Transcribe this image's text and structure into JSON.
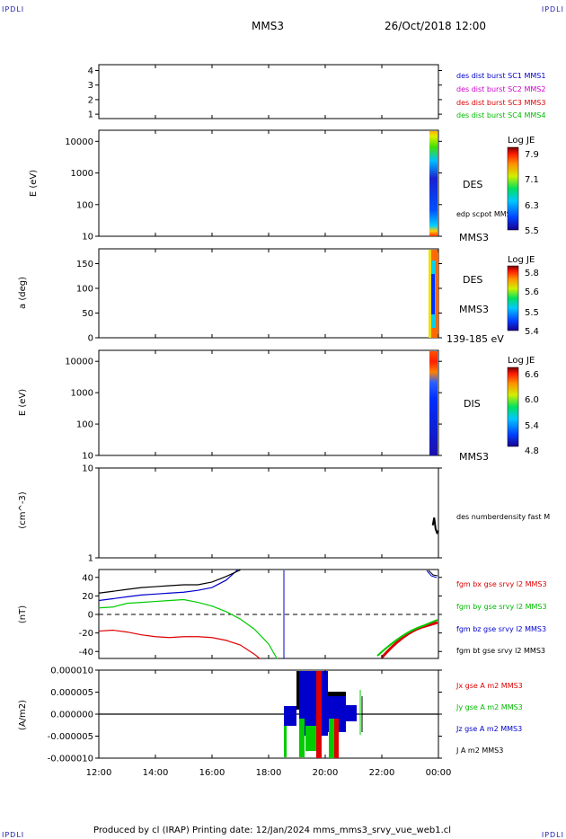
{
  "header": {
    "corner_label": "IPDLI",
    "spacecraft": "MMS3",
    "date_time": "26/Oct/2018 12:00"
  },
  "footer": {
    "text": "Produced by cl (IRAP)   Printing date: 12/Jan/2024   mms_mms3_srvy_vue_web1.cl"
  },
  "colors": {
    "c1": "#0000cc",
    "c2": "#cc00cc",
    "c3": "#dd0000",
    "c4": "#00bb00",
    "bx": "#dd0000",
    "by": "#00cc00",
    "bz": "#0000cc",
    "bt": "#000000"
  },
  "chart_data": [
    {
      "type": "line",
      "panel": "burst-intervals",
      "yticks": [
        "1",
        "2",
        "3",
        "4"
      ],
      "ylim": [
        0.7,
        4.4
      ],
      "legend": [
        "des dist burst SC1 MMS1",
        "des dist burst SC2 MMS2",
        "des dist burst SC3 MMS3",
        "des dist burst SC4 MMS4"
      ]
    },
    {
      "type": "heatmap",
      "panel": "des-energy-spectrogram",
      "ylabel": "E (eV)",
      "yscale": "log",
      "yticks": [
        "10",
        "100",
        "1000",
        "10000"
      ],
      "instrument": "DES",
      "spacecraft": "MMS3",
      "overlay_label": "edp scpot MMS3",
      "colorbar": {
        "title": "Log JE",
        "ticks": [
          "7.9",
          "7.1",
          "6.3",
          "5.5"
        ]
      }
    },
    {
      "type": "heatmap",
      "panel": "des-pitch-angle",
      "ylabel": "a (deg)",
      "yticks": [
        "0",
        "50",
        "100",
        "150"
      ],
      "ylim": [
        0,
        180
      ],
      "instrument": "DES",
      "spacecraft": "MMS3",
      "energy_range": "139-185 eV",
      "colorbar": {
        "title": "Log JE",
        "ticks": [
          "5.8",
          "5.6",
          "5.5",
          "5.4"
        ]
      }
    },
    {
      "type": "heatmap",
      "panel": "dis-energy-spectrogram",
      "ylabel": "E (eV)",
      "yscale": "log",
      "yticks": [
        "10",
        "100",
        "1000",
        "10000"
      ],
      "instrument": "DIS",
      "spacecraft": "MMS3",
      "colorbar": {
        "title": "Log JE",
        "ticks": [
          "6.6",
          "6.0",
          "5.4",
          "4.8"
        ]
      }
    },
    {
      "type": "line",
      "panel": "density",
      "ylabel": "(cm^-3)",
      "yscale": "log",
      "yticks": [
        "1",
        "10"
      ],
      "legend": [
        "des numberdensity fast M"
      ],
      "series": [
        {
          "x": [
            23.8,
            23.85,
            23.9,
            23.95,
            24.0
          ],
          "values": [
            2.3,
            2.8,
            2.1,
            1.9,
            2.0
          ]
        }
      ]
    },
    {
      "type": "line",
      "panel": "magnetic-field",
      "ylabel": "(nT)",
      "yticks": [
        "-40",
        "-20",
        "0",
        "20",
        "40"
      ],
      "ylim": [
        -48,
        48
      ],
      "legend": [
        "fgm bx gse srvy l2 MMS3",
        "fgm by gse srvy l2 MMS3",
        "fgm bz gse srvy l2 MMS3",
        "fgm bt gse srvy l2 MMS3"
      ],
      "series": [
        {
          "name": "fgm bx gse srvy l2 MMS3",
          "x": [
            12.0,
            12.5,
            13.0,
            13.5,
            14.0,
            14.5,
            15.0,
            15.5,
            16.0,
            16.5,
            17.0,
            17.5,
            17.7
          ],
          "values": [
            -18,
            -17,
            -19,
            -22,
            -24,
            -25,
            -24,
            -24,
            -25,
            -28,
            -33,
            -43,
            -48
          ]
        },
        {
          "name": "fgm by gse srvy l2 MMS3",
          "x": [
            12.0,
            12.5,
            13.0,
            13.5,
            14.0,
            14.5,
            15.0,
            15.5,
            16.0,
            16.5,
            17.0,
            17.5,
            18.0,
            18.3
          ],
          "values": [
            7,
            8,
            12,
            13,
            14,
            15,
            16,
            13,
            9,
            3,
            -5,
            -16,
            -32,
            -48
          ]
        },
        {
          "name": "fgm bz gse srvy l2 MMS3",
          "x": [
            12.0,
            12.5,
            13.0,
            13.5,
            14.0,
            14.5,
            15.0,
            15.5,
            16.0,
            16.5,
            16.9
          ],
          "values": [
            15,
            17,
            19,
            21,
            22,
            23,
            24,
            26,
            29,
            37,
            48
          ]
        },
        {
          "name": "fgm bt gse srvy l2 MMS3",
          "x": [
            12.0,
            12.5,
            13.0,
            13.5,
            14.0,
            14.5,
            15.0,
            15.5,
            16.0,
            16.5,
            17.0
          ],
          "values": [
            23,
            25,
            27,
            29,
            30,
            31,
            32,
            32,
            35,
            41,
            48
          ]
        }
      ]
    },
    {
      "type": "line",
      "panel": "current-density",
      "ylabel": "(A/m2)",
      "yticks": [
        "-0.000010",
        "-0.000005",
        "0.000000",
        "0.000005",
        "0.000010"
      ],
      "ylim": [
        -1e-05,
        1e-05
      ],
      "xticks": [
        "12:00",
        "14:00",
        "16:00",
        "18:00",
        "20:00",
        "22:00",
        "00:00"
      ],
      "legend": [
        "Jx gse A m2 MMS3",
        "Jy gse A m2 MMS3",
        "Jz gse A m2 MMS3",
        "J A m2 MMS3"
      ]
    }
  ]
}
